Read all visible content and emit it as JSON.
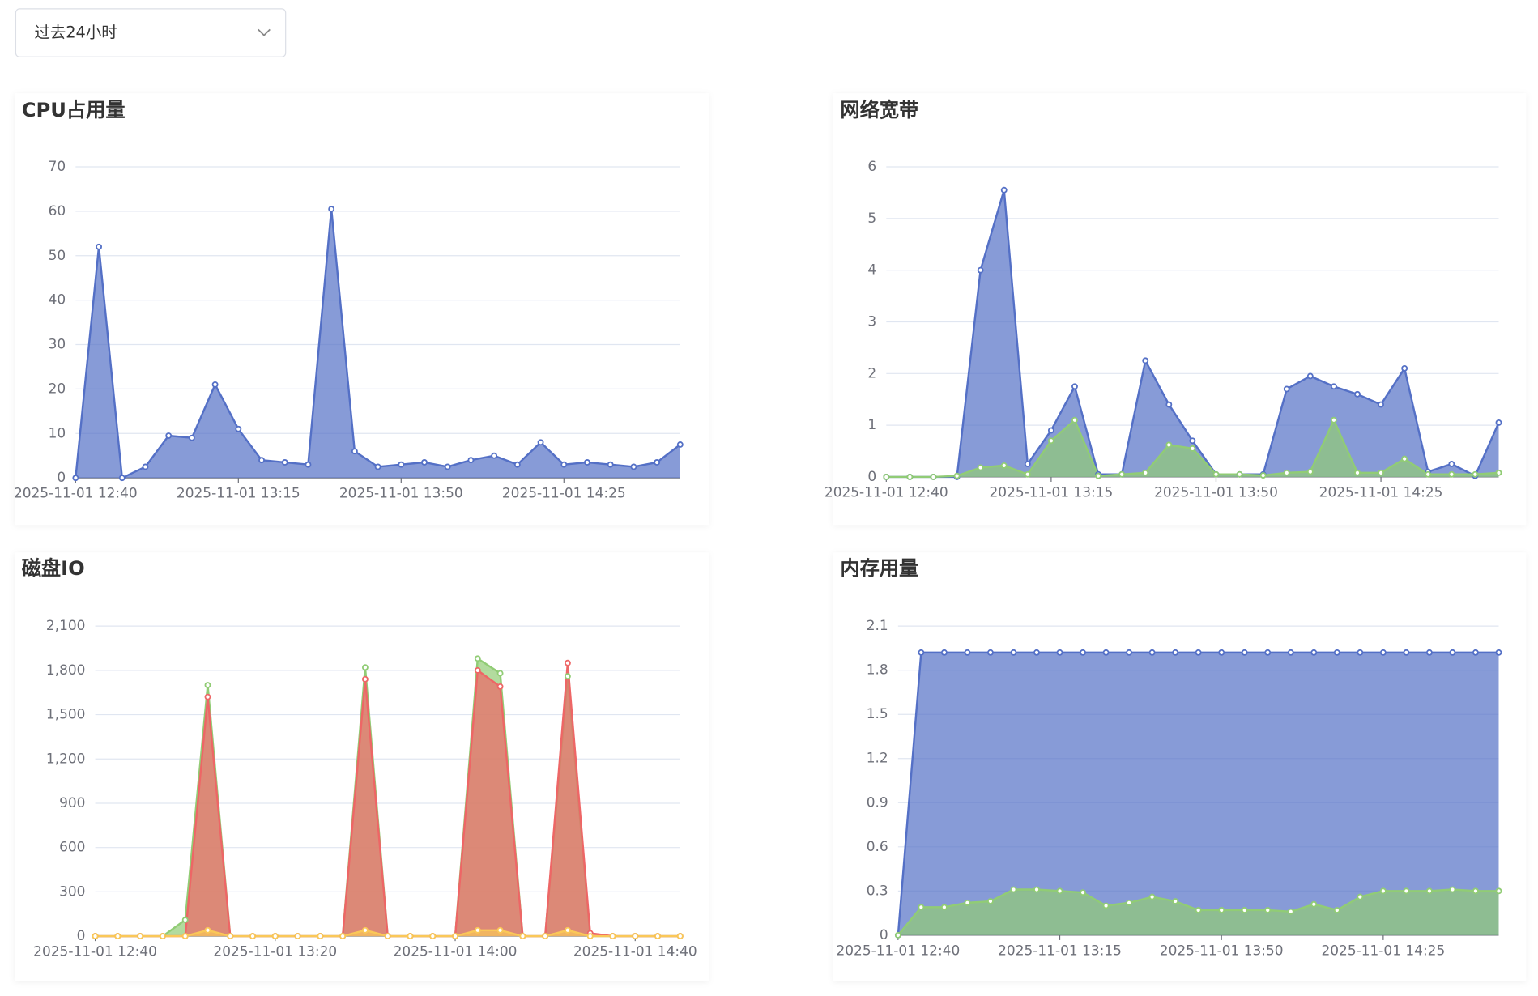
{
  "dropdown": {
    "label": "过去24小时"
  },
  "chart_data": [
    {
      "type": "area",
      "title": "CPU占用量",
      "categories": [
        "2025-11-01 12:40",
        null,
        null,
        null,
        null,
        null,
        null,
        "2025-11-01 13:15",
        null,
        null,
        null,
        null,
        null,
        null,
        "2025-11-01 13:50",
        null,
        null,
        null,
        null,
        null,
        null,
        "2025-11-01 14:25",
        null,
        null,
        null,
        null,
        null
      ],
      "series": [
        {
          "color": "#5470c6",
          "values": [
            0,
            52,
            0,
            2.5,
            9.5,
            9,
            21,
            11,
            4,
            3.5,
            3,
            60.5,
            6,
            2.5,
            3,
            3.5,
            2.5,
            4,
            5,
            3,
            8,
            3,
            3.5,
            3,
            2.5,
            3.5,
            7.5
          ]
        }
      ],
      "ylim": [
        0,
        70
      ],
      "yticks": [
        0,
        10,
        20,
        30,
        40,
        50,
        60,
        70
      ],
      "grid": true
    },
    {
      "type": "area",
      "title": "网络宽带",
      "categories": [
        "2025-11-01 12:40",
        null,
        null,
        null,
        null,
        null,
        null,
        "2025-11-01 13:15",
        null,
        null,
        null,
        null,
        null,
        null,
        "2025-11-01 13:50",
        null,
        null,
        null,
        null,
        null,
        null,
        "2025-11-01 14:25",
        null,
        null,
        null,
        null,
        null
      ],
      "series": [
        {
          "color": "#5470c6",
          "values": [
            0,
            0,
            0,
            0,
            4.0,
            5.55,
            0.25,
            0.9,
            1.75,
            0.05,
            0.05,
            2.25,
            1.4,
            0.7,
            0.05,
            0.05,
            0.05,
            1.7,
            1.95,
            1.75,
            1.6,
            1.4,
            2.1,
            0.1,
            0.25,
            0.02,
            1.05
          ]
        },
        {
          "color": "#91cc75",
          "values": [
            0,
            0,
            0,
            0.02,
            0.18,
            0.22,
            0.05,
            0.7,
            1.1,
            0.02,
            0.05,
            0.08,
            0.62,
            0.55,
            0.05,
            0.05,
            0.03,
            0.08,
            0.1,
            1.1,
            0.08,
            0.08,
            0.35,
            0.05,
            0.05,
            0.05,
            0.08
          ]
        }
      ],
      "ylim": [
        0,
        6
      ],
      "yticks": [
        0,
        1,
        2,
        3,
        4,
        5,
        6
      ],
      "grid": true
    },
    {
      "type": "area",
      "title": "磁盘IO",
      "categories": [
        "2025-11-01 12:40",
        null,
        null,
        null,
        null,
        null,
        null,
        null,
        "2025-11-01 13:20",
        null,
        null,
        null,
        null,
        null,
        null,
        null,
        "2025-11-01 14:00",
        null,
        null,
        null,
        null,
        null,
        null,
        null,
        "2025-11-01 14:40",
        null,
        null
      ],
      "series": [
        {
          "color": "#91cc75",
          "values": [
            0,
            0,
            0,
            0,
            110,
            1700,
            0,
            0,
            0,
            0,
            0,
            0,
            1820,
            0,
            0,
            0,
            0,
            1880,
            1780,
            0,
            0,
            1760,
            0,
            0,
            0,
            0,
            0
          ]
        },
        {
          "color": "#ee6666",
          "values": [
            0,
            0,
            0,
            0,
            0,
            1620,
            0,
            0,
            0,
            0,
            0,
            0,
            1740,
            0,
            0,
            0,
            0,
            1800,
            1690,
            0,
            0,
            1850,
            20,
            0,
            0,
            0,
            0
          ]
        },
        {
          "color": "#fac858",
          "values": [
            0,
            0,
            0,
            0,
            0,
            40,
            0,
            0,
            0,
            0,
            0,
            0,
            40,
            0,
            0,
            0,
            0,
            40,
            40,
            0,
            0,
            40,
            0,
            0,
            0,
            0,
            0
          ]
        }
      ],
      "ylim": [
        0,
        2100
      ],
      "yticks": [
        0,
        300,
        600,
        900,
        {
          "value": 1200,
          "label": "1,200"
        },
        {
          "value": 1500,
          "label": "1,500"
        },
        {
          "value": 1800,
          "label": "1,800"
        },
        {
          "value": 2100,
          "label": "2,100"
        }
      ],
      "grid": true
    },
    {
      "type": "area",
      "title": "内存用量",
      "categories": [
        "2025-11-01 12:40",
        null,
        null,
        null,
        null,
        null,
        null,
        "2025-11-01 13:15",
        null,
        null,
        null,
        null,
        null,
        null,
        "2025-11-01 13:50",
        null,
        null,
        null,
        null,
        null,
        null,
        "2025-11-01 14:25",
        null,
        null,
        null,
        null,
        null
      ],
      "series": [
        {
          "color": "#5470c6",
          "values": [
            0,
            1.92,
            1.92,
            1.92,
            1.92,
            1.92,
            1.92,
            1.92,
            1.92,
            1.92,
            1.92,
            1.92,
            1.92,
            1.92,
            1.92,
            1.92,
            1.92,
            1.92,
            1.92,
            1.92,
            1.92,
            1.92,
            1.92,
            1.92,
            1.92,
            1.92,
            1.92
          ]
        },
        {
          "color": "#91cc75",
          "values": [
            0,
            0.19,
            0.19,
            0.22,
            0.23,
            0.31,
            0.31,
            0.3,
            0.29,
            0.2,
            0.22,
            0.26,
            0.23,
            0.17,
            0.17,
            0.17,
            0.17,
            0.16,
            0.21,
            0.17,
            0.26,
            0.3,
            0.3,
            0.3,
            0.31,
            0.3,
            0.3
          ]
        }
      ],
      "ylim": [
        0,
        2.1
      ],
      "yticks": [
        0,
        0.3,
        0.6,
        0.9,
        1.2,
        1.5,
        1.8,
        2.1
      ],
      "grid": true
    }
  ]
}
